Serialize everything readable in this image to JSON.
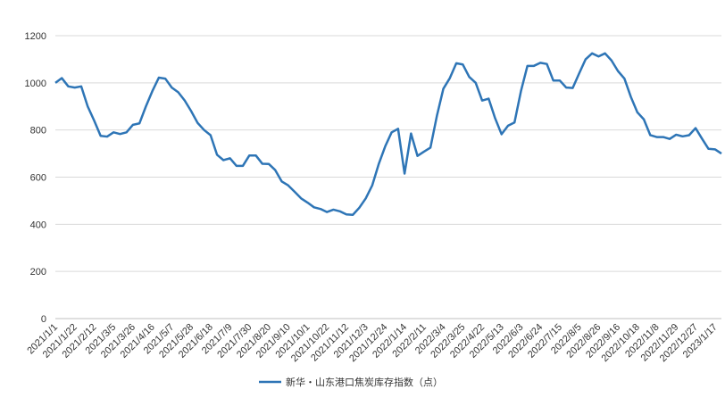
{
  "chart_data": {
    "type": "line",
    "categories": [
      "2021/1/1",
      null,
      null,
      "2021/1/22",
      null,
      null,
      "2021/2/12",
      null,
      null,
      "2021/3/5",
      null,
      null,
      "2021/3/26",
      null,
      null,
      "2021/4/16",
      null,
      null,
      "2021/5/7",
      null,
      null,
      "2021/5/28",
      null,
      null,
      "2021/6/18",
      null,
      null,
      "2021/7/9",
      null,
      null,
      "2021/7/30",
      null,
      null,
      "2021/8/20",
      null,
      null,
      "2021/9/10",
      null,
      null,
      "2021/10/1",
      null,
      null,
      "2021/10/22",
      null,
      null,
      "2021/11/12",
      null,
      null,
      "2021/12/3",
      null,
      null,
      "2021/12/24",
      null,
      null,
      "2022/1/14",
      null,
      null,
      "2022/2/11",
      null,
      null,
      "2022/3/4",
      null,
      null,
      "2022/3/25",
      null,
      null,
      "2022/4/22",
      null,
      null,
      "2022/5/13",
      null,
      null,
      "2022/6/3",
      null,
      null,
      "2022/6/24",
      null,
      null,
      "2022/7/15",
      null,
      null,
      "2022/8/5",
      null,
      null,
      "2022/8/26",
      null,
      null,
      "2022/9/16",
      null,
      null,
      "2022/10/18",
      null,
      null,
      "2022/11/8",
      null,
      null,
      "2022/11/29",
      null,
      null,
      "2022/12/27",
      null,
      null,
      "2023/1/17",
      null
    ],
    "series": [
      {
        "name": "新华・山东港口焦炭库存指数（点）",
        "color": "#2e75b6",
        "values": [
          1000,
          1020,
          985,
          980,
          985,
          900,
          840,
          775,
          772,
          790,
          783,
          790,
          822,
          828,
          900,
          965,
          1022,
          1018,
          980,
          960,
          925,
          880,
          830,
          800,
          778,
          695,
          672,
          680,
          648,
          648,
          692,
          692,
          657,
          656,
          630,
          582,
          565,
          538,
          510,
          492,
          472,
          465,
          452,
          462,
          455,
          442,
          440,
          470,
          510,
          565,
          655,
          730,
          790,
          805,
          615,
          785,
          690,
          708,
          725,
          860,
          975,
          1020,
          1083,
          1078,
          1025,
          1000,
          925,
          933,
          850,
          782,
          818,
          832,
          965,
          1072,
          1072,
          1085,
          1080,
          1010,
          1010,
          980,
          978,
          1040,
          1100,
          1125,
          1112,
          1125,
          1095,
          1050,
          1018,
          940,
          875,
          845,
          778,
          770,
          770,
          762,
          780,
          773,
          778,
          808,
          763,
          720,
          718,
          700
        ]
      }
    ],
    "ylim": [
      0,
      1200
    ],
    "yticks": [
      0,
      200,
      400,
      600,
      800,
      1000,
      1200
    ],
    "grid": true,
    "legend": "bottom"
  }
}
